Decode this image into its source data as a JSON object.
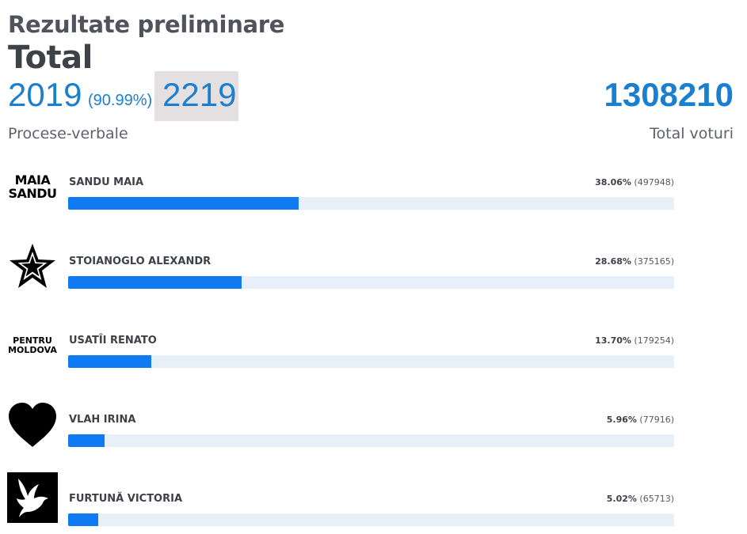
{
  "header": {
    "subtitle": "Rezultate preliminare",
    "title": "Total"
  },
  "protocols": {
    "counted": "2019",
    "percent": "(90.99%)",
    "total": "2219",
    "label": "Procese-verbale"
  },
  "votes": {
    "total": "1308210",
    "label": "Total voturi"
  },
  "candidates": [
    {
      "name": "SANDU MAIA",
      "percent": "38.06%",
      "votes": "(497948)",
      "share": 0.3806,
      "logo_icon": "maia-sandu-text-logo",
      "logo_line1": "MAIA",
      "logo_line2": "SANDU"
    },
    {
      "name": "STOIANOGLO ALEXANDR",
      "percent": "28.68%",
      "votes": "(375165)",
      "share": 0.2868,
      "logo_icon": "star-icon"
    },
    {
      "name": "USATÎI RENATO",
      "percent": "13.70%",
      "votes": "(179254)",
      "share": 0.137,
      "logo_icon": "pentru-moldova-text-logo",
      "logo_line1": "PENTRU",
      "logo_line2": "MOLDOVA"
    },
    {
      "name": "VLAH IRINA",
      "percent": "5.96%",
      "votes": "(77916)",
      "share": 0.0596,
      "logo_icon": "heart-icon"
    },
    {
      "name": "FURTUNĂ VICTORIA",
      "percent": "5.02%",
      "votes": "(65713)",
      "share": 0.0502,
      "logo_icon": "dove-icon"
    }
  ],
  "colors": {
    "accent": "#1a7fcf",
    "bar_fill": "#0f7af1",
    "bar_track": "#e7f0f8",
    "highlight_bg": "#e4dfe0"
  }
}
